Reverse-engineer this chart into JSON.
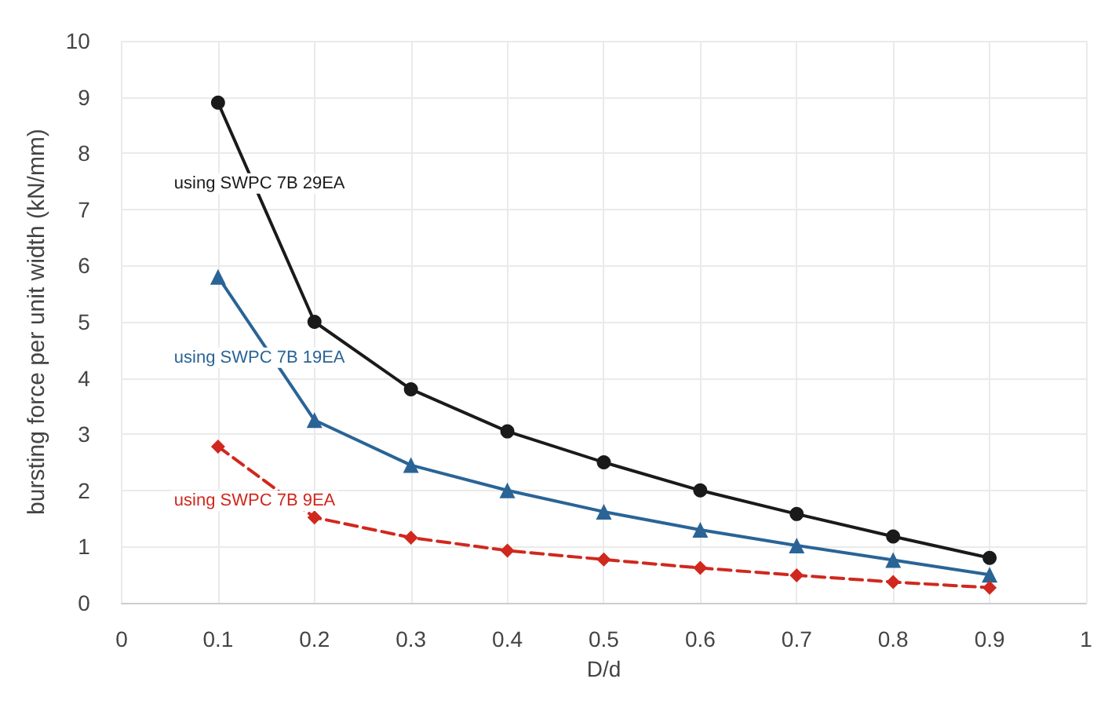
{
  "chart_data": {
    "type": "line",
    "xlabel": "D/d",
    "ylabel": "bursting force per unit width (kN/mm)",
    "x": [
      0.1,
      0.2,
      0.3,
      0.4,
      0.5,
      0.6,
      0.7,
      0.8,
      0.9
    ],
    "series": [
      {
        "name": "using SWPC 7B 29EA",
        "color": "#1a1a1a",
        "marker": "circle",
        "line_style": "solid",
        "values": [
          8.9,
          5.0,
          3.8,
          3.05,
          2.5,
          2.0,
          1.58,
          1.18,
          0.8
        ]
      },
      {
        "name": "using SWPC 7B 19EA",
        "color": "#2a6496",
        "marker": "triangle",
        "line_style": "solid",
        "values": [
          5.8,
          3.25,
          2.45,
          2.0,
          1.62,
          1.3,
          1.02,
          0.76,
          0.5
        ]
      },
      {
        "name": "using SWPC 7B 9EA",
        "color": "#d0281e",
        "marker": "diamond",
        "line_style": "dashed",
        "values": [
          2.78,
          1.52,
          1.16,
          0.93,
          0.77,
          0.62,
          0.49,
          0.37,
          0.27
        ]
      }
    ],
    "xlim": [
      0,
      1
    ],
    "xticks": [
      0,
      0.1,
      0.2,
      0.3,
      0.4,
      0.5,
      0.6,
      0.7,
      0.8,
      0.9,
      1
    ],
    "ylim": [
      0,
      10
    ],
    "yticks": [
      0,
      1,
      2,
      3,
      4,
      5,
      6,
      7,
      8,
      9,
      10
    ],
    "grid": true,
    "legend": false
  }
}
